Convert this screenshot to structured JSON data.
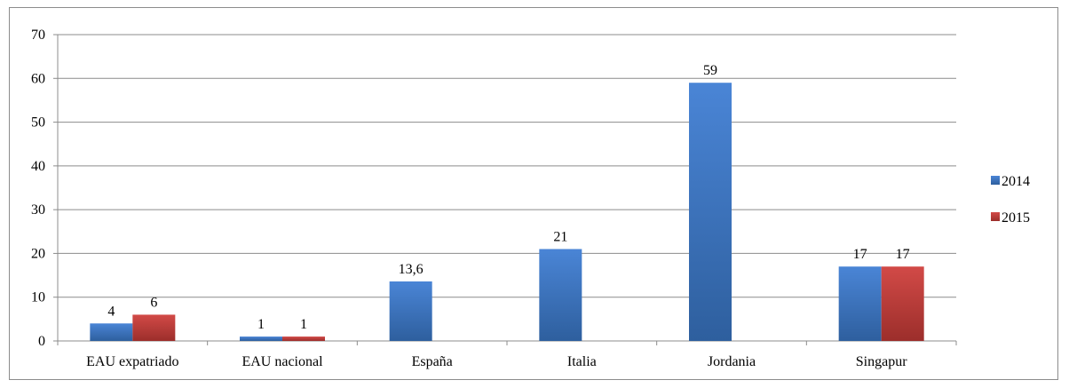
{
  "chart_data": {
    "type": "bar",
    "title": "",
    "xlabel": "",
    "ylabel": "",
    "ylim": [
      0,
      70
    ],
    "yticks": [
      0,
      10,
      20,
      30,
      40,
      50,
      60,
      70
    ],
    "grid": true,
    "legend_position": "right",
    "decimal_separator": ",",
    "categories": [
      "EAU expatriado",
      "EAU nacional",
      "España",
      "Italia",
      "Jordania",
      "Singapur"
    ],
    "series": [
      {
        "name": "2014",
        "color": "#4a7fce",
        "values": [
          4,
          1,
          13.6,
          21,
          59,
          17
        ]
      },
      {
        "name": "2015",
        "color": "#c0504d",
        "values": [
          6,
          1,
          null,
          null,
          null,
          17
        ]
      }
    ]
  }
}
